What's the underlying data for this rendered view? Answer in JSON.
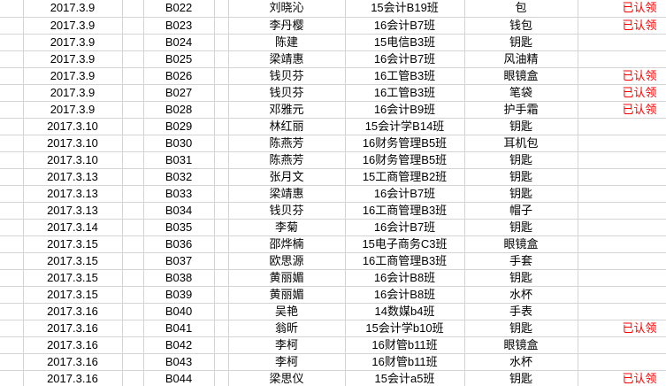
{
  "sheet": {
    "description": "lost-and-found register spreadsheet",
    "columns": {
      "date": "date",
      "id": "item-id",
      "name": "student-name",
      "class": "class",
      "item": "item",
      "status": "claim-status"
    },
    "claimed_label": "已认领",
    "rows": [
      {
        "date": "2017.3.9",
        "id": "B022",
        "name": "刘晓沁",
        "class": "15会计B19班",
        "item": "包",
        "status": "已认领"
      },
      {
        "date": "2017.3.9",
        "id": "B023",
        "name": "李丹樱",
        "class": "16会计B7班",
        "item": "钱包",
        "status": "已认领"
      },
      {
        "date": "2017.3.9",
        "id": "B024",
        "name": "陈建",
        "class": "15电信B3班",
        "item": "钥匙",
        "status": ""
      },
      {
        "date": "2017.3.9",
        "id": "B025",
        "name": "梁靖惠",
        "class": "16会计B7班",
        "item": "风油精",
        "status": ""
      },
      {
        "date": "2017.3.9",
        "id": "B026",
        "name": "钱贝芬",
        "class": "16工管B3班",
        "item": "眼镜盒",
        "status": "已认领"
      },
      {
        "date": "2017.3.9",
        "id": "B027",
        "name": "钱贝芬",
        "class": "16工管B3班",
        "item": "笔袋",
        "status": "已认领"
      },
      {
        "date": "2017.3.9",
        "id": "B028",
        "name": "邓雅元",
        "class": "16会计B9班",
        "item": "护手霜",
        "status": "已认领"
      },
      {
        "date": "2017.3.10",
        "id": "B029",
        "name": "林红丽",
        "class": "15会计学B14班",
        "item": "钥匙",
        "status": ""
      },
      {
        "date": "2017.3.10",
        "id": "B030",
        "name": "陈燕芳",
        "class": "16财务管理B5班",
        "item": "耳机包",
        "status": ""
      },
      {
        "date": "2017.3.10",
        "id": "B031",
        "name": "陈燕芳",
        "class": "16财务管理B5班",
        "item": "钥匙",
        "status": ""
      },
      {
        "date": "2017.3.13",
        "id": "B032",
        "name": "张月文",
        "class": "15工商管理B2班",
        "item": "钥匙",
        "status": ""
      },
      {
        "date": "2017.3.13",
        "id": "B033",
        "name": "梁靖惠",
        "class": "16会计B7班",
        "item": "钥匙",
        "status": ""
      },
      {
        "date": "2017.3.13",
        "id": "B034",
        "name": "钱贝芬",
        "class": "16工商管理B3班",
        "item": "帽子",
        "status": ""
      },
      {
        "date": "2017.3.14",
        "id": "B035",
        "name": "李菊",
        "class": "16会计B7班",
        "item": "钥匙",
        "status": ""
      },
      {
        "date": "2017.3.15",
        "id": "B036",
        "name": "邵烨楠",
        "class": "15电子商务C3班",
        "item": "眼镜盒",
        "status": ""
      },
      {
        "date": "2017.3.15",
        "id": "B037",
        "name": "欧思源",
        "class": "16工商管理B3班",
        "item": "手套",
        "status": ""
      },
      {
        "date": "2017.3.15",
        "id": "B038",
        "name": "黄丽媚",
        "class": "16会计B8班",
        "item": "钥匙",
        "status": ""
      },
      {
        "date": "2017.3.15",
        "id": "B039",
        "name": "黄丽媚",
        "class": "16会计B8班",
        "item": "水杯",
        "status": ""
      },
      {
        "date": "2017.3.16",
        "id": "B040",
        "name": "吴艳",
        "class": "14数媒b4班",
        "item": "手表",
        "status": ""
      },
      {
        "date": "2017.3.16",
        "id": "B041",
        "name": "翁昕",
        "class": "15会计学b10班",
        "item": "钥匙",
        "status": "已认领"
      },
      {
        "date": "2017.3.16",
        "id": "B042",
        "name": "李柯",
        "class": "16财管b11班",
        "item": "眼镜盒",
        "status": ""
      },
      {
        "date": "2017.3.16",
        "id": "B043",
        "name": "李柯",
        "class": "16财管b11班",
        "item": "水杯",
        "status": ""
      },
      {
        "date": "2017.3.16",
        "id": "B044",
        "name": "梁思仪",
        "class": "15会计a5班",
        "item": "钥匙",
        "status": "已认领"
      }
    ]
  },
  "colors": {
    "claimed_red": "#ff0000",
    "gridline": "#d4d4d4",
    "text": "#000000",
    "table_bottom_border": "#4f4f4f"
  }
}
